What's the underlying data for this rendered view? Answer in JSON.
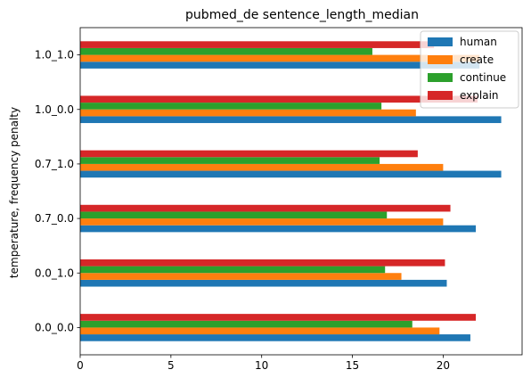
{
  "chart_data": {
    "type": "bar",
    "orientation": "horizontal",
    "title": "pubmed_de sentence_length_median",
    "xlabel": "",
    "ylabel": "temperature, frequency penalty",
    "categories": [
      "0.0_0.0",
      "0.0_1.0",
      "0.7_0.0",
      "0.7_1.0",
      "1.0_0.0",
      "1.0_1.0"
    ],
    "series": [
      {
        "name": "human",
        "color": "#1f77b4",
        "values": [
          21.5,
          20.2,
          21.8,
          23.2,
          23.2,
          22.0
        ]
      },
      {
        "name": "create",
        "color": "#ff7f0e",
        "values": [
          19.8,
          17.7,
          20.0,
          20.0,
          18.5,
          22.0
        ]
      },
      {
        "name": "continue",
        "color": "#2ca02c",
        "values": [
          18.3,
          16.8,
          16.9,
          16.5,
          16.6,
          16.1
        ]
      },
      {
        "name": "explain",
        "color": "#d62728",
        "values": [
          21.8,
          20.1,
          20.4,
          18.6,
          21.9,
          19.5
        ]
      }
    ],
    "xlim": [
      0,
      24.35
    ],
    "xticks": [
      0,
      5,
      10,
      15,
      20
    ],
    "legend_position": "top-right",
    "grid": false
  }
}
